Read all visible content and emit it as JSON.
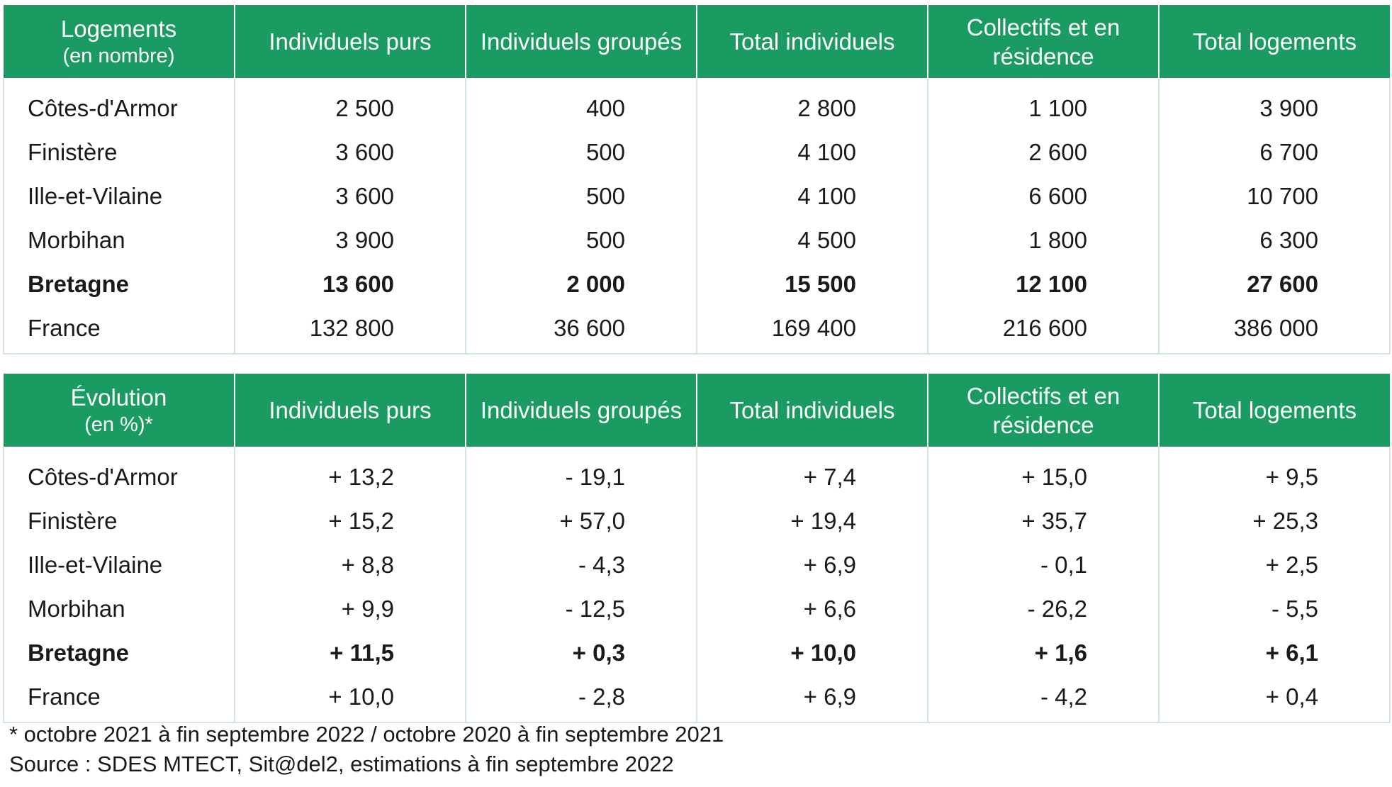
{
  "colors": {
    "header_bg": "#1a9b62",
    "header_text": "#ffffff",
    "cell_border": "#d3e8dc"
  },
  "table_counts": {
    "headers": {
      "label": "Logements",
      "label_sub": "(en nombre)",
      "individuels_purs": "Individuels purs",
      "individuels_groupes": "Individuels groupés",
      "total_individuels": "Total individuels",
      "collectifs": "Collectifs et en résidence",
      "total_logements": "Total logements"
    },
    "rows": [
      {
        "name": "Côtes-d'Armor",
        "values": [
          "2 500",
          "400",
          "2 800",
          "1 100",
          "3 900"
        ]
      },
      {
        "name": "Finistère",
        "values": [
          "3 600",
          "500",
          "4 100",
          "2 600",
          "6 700"
        ]
      },
      {
        "name": "Ille-et-Vilaine",
        "values": [
          "3 600",
          "500",
          "4 100",
          "6 600",
          "10 700"
        ]
      },
      {
        "name": "Morbihan",
        "values": [
          "3 900",
          "500",
          "4 500",
          "1 800",
          "6 300"
        ]
      },
      {
        "name": "Bretagne",
        "values": [
          "13 600",
          "2 000",
          "15 500",
          "12 100",
          "27 600"
        ]
      },
      {
        "name": "France",
        "values": [
          "132 800",
          "36 600",
          "169 400",
          "216 600",
          "386 000"
        ]
      }
    ]
  },
  "table_evolution": {
    "headers": {
      "label": "Évolution",
      "label_sub": "(en %)*",
      "individuels_purs": "Individuels purs",
      "individuels_groupes": "Individuels groupés",
      "total_individuels": "Total individuels",
      "collectifs": "Collectifs et en résidence",
      "total_logements": "Total logements"
    },
    "rows": [
      {
        "name": "Côtes-d'Armor",
        "values": [
          "+ 13,2",
          "- 19,1",
          "+ 7,4",
          "+ 15,0",
          "+ 9,5"
        ]
      },
      {
        "name": "Finistère",
        "values": [
          "+ 15,2",
          "+ 57,0",
          "+ 19,4",
          "+ 35,7",
          "+ 25,3"
        ]
      },
      {
        "name": "Ille-et-Vilaine",
        "values": [
          "+ 8,8",
          "- 4,3",
          "+ 6,9",
          "- 0,1",
          "+ 2,5"
        ]
      },
      {
        "name": "Morbihan",
        "values": [
          "+ 9,9",
          "- 12,5",
          "+ 6,6",
          "- 26,2",
          "- 5,5"
        ]
      },
      {
        "name": "Bretagne",
        "values": [
          "+ 11,5",
          "+ 0,3",
          "+ 10,0",
          "+ 1,6",
          "+ 6,1"
        ]
      },
      {
        "name": "France",
        "values": [
          "+ 10,0",
          "- 2,8",
          "+ 6,9",
          "- 4,2",
          "+ 0,4"
        ]
      }
    ]
  },
  "footnotes": {
    "period": "*  octobre 2021 à fin septembre 2022 / octobre 2020 à fin septembre 2021",
    "source": "Source : SDES MTECT, Sit@del2, estimations à fin septembre 2022"
  }
}
